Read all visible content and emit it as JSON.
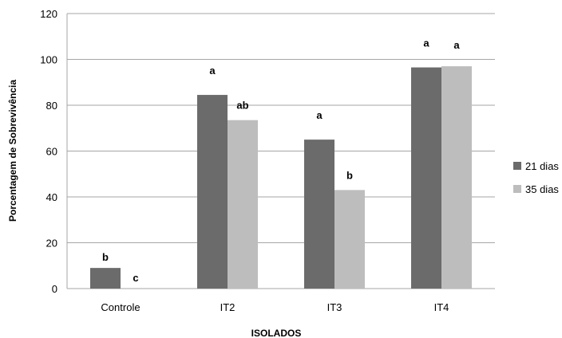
{
  "chart_data": {
    "type": "bar",
    "categories": [
      "Controle",
      "IT2",
      "IT3",
      "IT4"
    ],
    "series": [
      {
        "name": "21 dias",
        "color": "#6b6b6b",
        "values": [
          9,
          84.5,
          65,
          96.5
        ],
        "labels": [
          "b",
          "a",
          "a",
          "a"
        ]
      },
      {
        "name": "35 dias",
        "color": "#bdbdbd",
        "values": [
          0,
          73.5,
          43,
          97
        ],
        "labels": [
          "c",
          "ab",
          "b",
          "a"
        ]
      }
    ],
    "xlabel": "ISOLADOS",
    "ylabel": "Porcentagem de Sobrevivência",
    "ylim": [
      0,
      120
    ],
    "yticks": [
      "0",
      "20",
      "40",
      "60",
      "80",
      "100",
      "120"
    ],
    "grid": true,
    "legend_position": "right"
  }
}
